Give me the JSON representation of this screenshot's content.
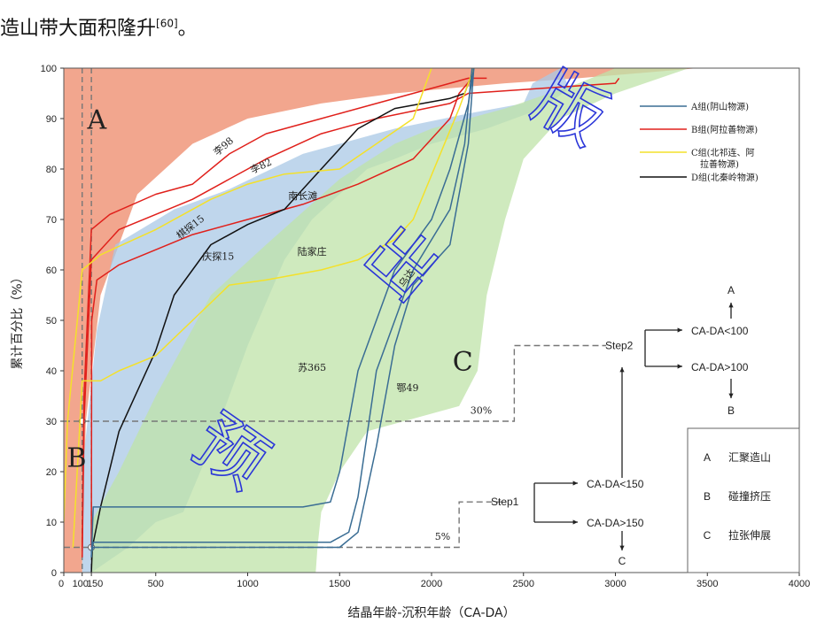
{
  "header": {
    "text": "造山带大面积隆升",
    "ref": "[60]",
    "tail": "。"
  },
  "chart_data": {
    "type": "line",
    "xlabel": "结晶年龄-沉积年龄（CA-DA）",
    "ylabel": "累计百分比（%）",
    "xlim": [
      0,
      4000
    ],
    "ylim": [
      0,
      100
    ],
    "x_ticks": [
      "0",
      "100",
      "150",
      "500",
      "1000",
      "1500",
      "2000",
      "2500",
      "3000",
      "3500",
      "4000"
    ],
    "y_ticks": [
      "0",
      "10",
      "20",
      "30",
      "40",
      "50",
      "60",
      "70",
      "80",
      "90",
      "100"
    ],
    "zones": [
      {
        "name": "A",
        "color": "#f0967a"
      },
      {
        "name": "B",
        "color": "#a9c8e6"
      },
      {
        "name": "C",
        "color": "#bfe3a8"
      }
    ],
    "legend": [
      {
        "label": "A组(阴山物源)",
        "color": "#3a6d94"
      },
      {
        "label": "B组(阿拉善物源)",
        "color": "#e0201b"
      },
      {
        "label": "C组(北祁连、阿拉善物源)",
        "color": "#f4e12a"
      },
      {
        "label": "D组(北秦岭物源)",
        "color": "#111111"
      }
    ],
    "series": [
      {
        "name": "李98",
        "group": "B",
        "x": [
          100,
          110,
          150,
          250,
          500,
          700,
          900,
          1100,
          1400,
          1700,
          1900,
          2100,
          2200,
          2300
        ],
        "y": [
          5,
          35,
          68,
          71,
          75,
          77,
          83,
          87,
          90,
          93,
          95,
          97,
          98,
          98
        ]
      },
      {
        "name": "李82",
        "group": "B",
        "x": [
          100,
          110,
          150,
          300,
          500,
          700,
          900,
          1100,
          1400,
          1700,
          2100,
          2200,
          3000,
          3020
        ],
        "y": [
          3,
          30,
          62,
          68,
          71,
          74,
          78,
          82,
          87,
          90,
          93,
          95,
          97,
          98
        ]
      },
      {
        "name": "棋探15",
        "group": "B",
        "x": [
          150,
          152,
          180,
          300,
          500,
          700,
          1000,
          1300,
          1600,
          1900,
          2100,
          2150,
          2220
        ],
        "y": [
          5,
          50,
          58,
          61,
          64,
          67,
          70,
          73,
          77,
          82,
          90,
          95,
          98
        ]
      },
      {
        "name": "庆探15",
        "group": "D",
        "x": [
          150,
          155,
          200,
          300,
          500,
          600,
          800,
          1000,
          1200,
          1400,
          1600,
          1800,
          2100,
          2180,
          2230
        ],
        "y": [
          0,
          5,
          13,
          28,
          44,
          55,
          65,
          69,
          72,
          80,
          88,
          92,
          94,
          95,
          100
        ]
      },
      {
        "name": "南长滩",
        "group": "C",
        "x": [
          0,
          20,
          100,
          200,
          500,
          800,
          1000,
          1100,
          1200,
          1500,
          1900,
          2000
        ],
        "y": [
          10,
          30,
          60,
          63,
          68,
          74,
          77,
          78,
          79,
          80,
          90,
          100
        ]
      },
      {
        "name": "陆家庄",
        "group": "C",
        "x": [
          50,
          100,
          200,
          300,
          500,
          700,
          900,
          1100,
          1400,
          1600,
          1800,
          1900,
          2150,
          2230
        ],
        "y": [
          5,
          38,
          38,
          40,
          43,
          50,
          57,
          58,
          60,
          62,
          66,
          70,
          92,
          100
        ]
      },
      {
        "name": "苏365",
        "group": "A",
        "x": [
          150,
          160,
          1300,
          1450,
          1500,
          1600,
          1800,
          2000,
          2100,
          2200,
          2230
        ],
        "y": [
          3,
          13,
          13,
          14,
          20,
          40,
          60,
          70,
          80,
          93,
          100
        ]
      },
      {
        "name": "鄂49",
        "group": "A",
        "x": [
          150,
          160,
          1450,
          1550,
          1600,
          1700,
          1900,
          2100,
          2180,
          2220
        ],
        "y": [
          4,
          6,
          6,
          8,
          15,
          40,
          60,
          72,
          85,
          100
        ]
      },
      {
        "name": "乌达",
        "group": "A",
        "x": [
          150,
          160,
          1500,
          1600,
          1700,
          1800,
          1900,
          2100,
          2200,
          2230
        ],
        "y": [
          4,
          5,
          5,
          8,
          25,
          45,
          57,
          65,
          85,
          100
        ]
      }
    ],
    "reference": {
      "x_lines": [
        100,
        150
      ],
      "thresholds": [
        {
          "label": "30%",
          "y": 30
        },
        {
          "label": "5%",
          "y": 5
        }
      ]
    },
    "annotations": {
      "step1": "Step1",
      "step2": "Step2",
      "ca150lt": "CA-DA<150",
      "ca150gt": "CA-DA>150",
      "ca100lt": "CA-DA<100",
      "ca100gt": "CA-DA>100",
      "a": "A",
      "b": "B",
      "c": "C"
    },
    "key": [
      {
        "letter": "A",
        "text": "汇聚造山"
      },
      {
        "letter": "B",
        "text": "碰撞挤压"
      },
      {
        "letter": "C",
        "text": "拉张伸展"
      }
    ]
  },
  "watermark": [
    "版",
    "出",
    "预"
  ]
}
